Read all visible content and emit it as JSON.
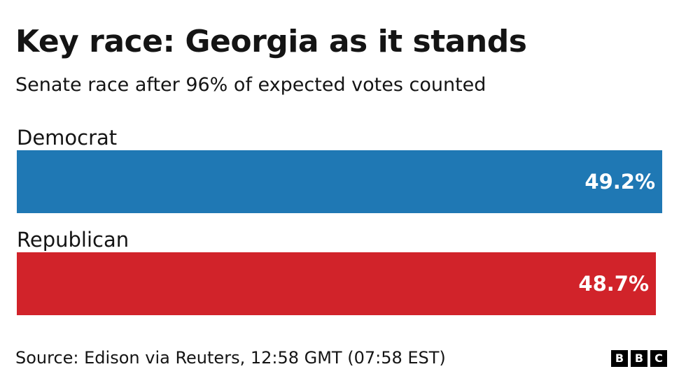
{
  "chart_data": {
    "type": "bar",
    "orientation": "horizontal",
    "title": "Key race: Georgia as it stands",
    "subtitle": "Senate race after 96% of expected votes counted",
    "categories": [
      "Democrat",
      "Republican"
    ],
    "values": [
      49.2,
      48.7
    ],
    "value_labels": [
      "49.2%",
      "48.7%"
    ],
    "colors": [
      "#1f78b4",
      "#d1232a"
    ],
    "xlim": [
      0,
      49.2
    ],
    "grid": false,
    "legend": "none",
    "source": "Source: Edison via Reuters, 12:58 GMT (07:58 EST)"
  },
  "logo": {
    "letters": [
      "B",
      "B",
      "C"
    ]
  }
}
